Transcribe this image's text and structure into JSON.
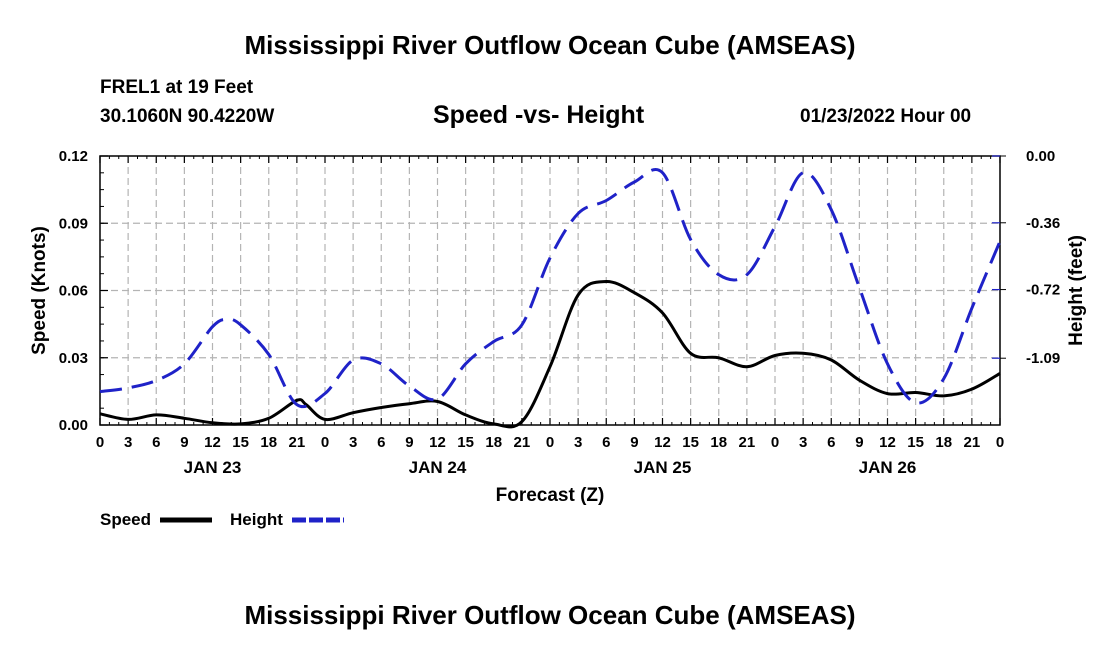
{
  "page": {
    "title": "Mississippi River Outflow Ocean Cube (AMSEAS)",
    "station": "FREL1 at 19 Feet",
    "coords": "30.1060N  90.4220W",
    "subtitle": "Speed -vs- Height",
    "datetime": "01/23/2022 Hour 00",
    "footer_title": "Mississippi River Outflow Ocean Cube (AMSEAS)"
  },
  "chart_data": {
    "type": "line",
    "title": "Speed -vs- Height",
    "xlabel": "Forecast (Z)",
    "ylabel": "Speed (Knots)",
    "y2label": "Height (feet)",
    "xlim": [
      0,
      96
    ],
    "ylim": [
      0,
      0.12
    ],
    "y2lim": [
      -1.45,
      0.0
    ],
    "x_ticks": [
      0,
      3,
      6,
      9,
      12,
      15,
      18,
      21,
      24,
      27,
      30,
      33,
      36,
      39,
      42,
      45,
      48,
      51,
      54,
      57,
      60,
      63,
      66,
      69,
      72,
      75,
      78,
      81,
      84,
      87,
      90,
      93,
      96
    ],
    "x_tick_labels": [
      "0",
      "3",
      "6",
      "9",
      "12",
      "15",
      "18",
      "21",
      "0",
      "3",
      "6",
      "9",
      "12",
      "15",
      "18",
      "21",
      "0",
      "3",
      "6",
      "9",
      "12",
      "15",
      "18",
      "21",
      "0",
      "3",
      "6",
      "9",
      "12",
      "15",
      "18",
      "21",
      "0"
    ],
    "day_labels": [
      {
        "x": 12,
        "label": "JAN 23"
      },
      {
        "x": 36,
        "label": "JAN 24"
      },
      {
        "x": 60,
        "label": "JAN 25"
      },
      {
        "x": 84,
        "label": "JAN 26"
      }
    ],
    "y_ticks": [
      0,
      0.03,
      0.06,
      0.09,
      0.12
    ],
    "y_tick_labels": [
      "0.00",
      "0.03",
      "0.06",
      "0.09",
      "0.12"
    ],
    "y2_ticks": [
      0.0,
      -0.36,
      -0.72,
      -1.09
    ],
    "y2_tick_labels": [
      "0.00",
      "-0.36",
      "-0.72",
      "-1.09"
    ],
    "grid": true,
    "series": [
      {
        "name": "Speed",
        "axis": "left",
        "color": "#000000",
        "dash": "solid",
        "x": [
          0,
          3,
          6,
          9,
          12,
          15,
          18,
          21,
          22,
          24,
          27,
          30,
          33,
          36,
          39,
          42,
          45,
          48,
          51,
          54,
          57,
          60,
          63,
          66,
          69,
          72,
          75,
          78,
          81,
          84,
          87,
          90,
          93,
          96
        ],
        "values": [
          0.005,
          0.0025,
          0.0045,
          0.003,
          0.001,
          0.0005,
          0.003,
          0.011,
          0.009,
          0.0025,
          0.0055,
          0.0078,
          0.0095,
          0.0105,
          0.0045,
          0.0005,
          0.0015,
          0.026,
          0.058,
          0.064,
          0.059,
          0.05,
          0.032,
          0.03,
          0.026,
          0.031,
          0.032,
          0.029,
          0.02,
          0.014,
          0.0145,
          0.013,
          0.016,
          0.023
        ]
      },
      {
        "name": "Height",
        "axis": "right",
        "color": "#1f22c8",
        "dash": "dashed",
        "x": [
          0,
          3,
          6,
          9,
          12,
          13.5,
          15,
          18,
          21,
          24,
          27,
          30,
          33,
          36,
          39,
          42,
          45,
          48,
          51,
          54,
          57,
          60,
          63,
          66,
          69,
          72,
          75,
          78,
          81,
          84,
          87,
          90,
          93,
          96
        ],
        "values": [
          -1.27,
          -1.25,
          -1.21,
          -1.12,
          -0.92,
          -0.88,
          -0.91,
          -1.07,
          -1.34,
          -1.28,
          -1.1,
          -1.12,
          -1.24,
          -1.31,
          -1.12,
          -1.0,
          -0.91,
          -0.55,
          -0.31,
          -0.24,
          -0.14,
          -0.09,
          -0.45,
          -0.64,
          -0.64,
          -0.38,
          -0.09,
          -0.29,
          -0.71,
          -1.12,
          -1.33,
          -1.2,
          -0.82,
          -0.46
        ]
      }
    ],
    "legend": [
      {
        "label": "Speed",
        "color": "#000000",
        "style": "solid"
      },
      {
        "label": "Height",
        "color": "#1f22c8",
        "style": "dashed"
      }
    ],
    "legend_position": "bottom-left"
  }
}
